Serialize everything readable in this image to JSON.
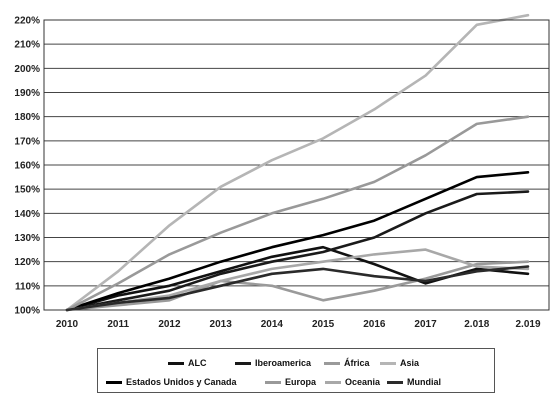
{
  "chart_data": {
    "type": "line",
    "x": [
      "2010",
      "2011",
      "2012",
      "2013",
      "2014",
      "2015",
      "2016",
      "2017",
      "2.018",
      "2.019"
    ],
    "ylim": [
      100,
      220
    ],
    "yticks": [
      "100%",
      "110%",
      "120%",
      "130%",
      "140%",
      "150%",
      "160%",
      "170%",
      "180%",
      "190%",
      "200%",
      "210%",
      "220%"
    ],
    "grid": true,
    "legend_position": "bottom",
    "series": [
      {
        "name": "ALC",
        "color": "#111111",
        "values": [
          100,
          106,
          110,
          116,
          122,
          126,
          119,
          111,
          117,
          115
        ]
      },
      {
        "name": "Iberoamerica",
        "color": "#1a1a1a",
        "values": [
          100,
          104,
          108,
          115,
          120,
          124,
          130,
          140,
          148,
          149
        ]
      },
      {
        "name": "África",
        "color": "#9a9a9a",
        "values": [
          100,
          102,
          104,
          112,
          110,
          104,
          108,
          113,
          119,
          120
        ]
      },
      {
        "name": "Asia",
        "color": "#b5b5b5",
        "values": [
          100,
          116,
          135,
          151,
          162,
          171,
          183,
          197,
          218,
          222
        ]
      },
      {
        "name": "Estados Unidos y Canada",
        "color": "#000000",
        "values": [
          100,
          107,
          113,
          120,
          126,
          131,
          137,
          146,
          155,
          157
        ]
      },
      {
        "name": "Europa",
        "color": "#999999",
        "values": [
          100,
          111,
          123,
          132,
          140,
          146,
          153,
          164,
          177,
          180
        ]
      },
      {
        "name": "Oceania",
        "color": "#a8a8a8",
        "values": [
          100,
          103,
          106,
          112,
          117,
          120,
          123,
          125,
          118,
          117
        ]
      },
      {
        "name": "Mundial",
        "color": "#2a2a2a",
        "values": [
          100,
          103,
          105,
          110,
          115,
          117,
          114,
          112,
          116,
          118
        ]
      }
    ]
  },
  "legend": {
    "items": [
      "ALC",
      "Iberoamerica",
      "África",
      "Asia",
      "Estados Unidos y Canada",
      "Europa",
      "Oceania",
      "Mundial"
    ]
  }
}
